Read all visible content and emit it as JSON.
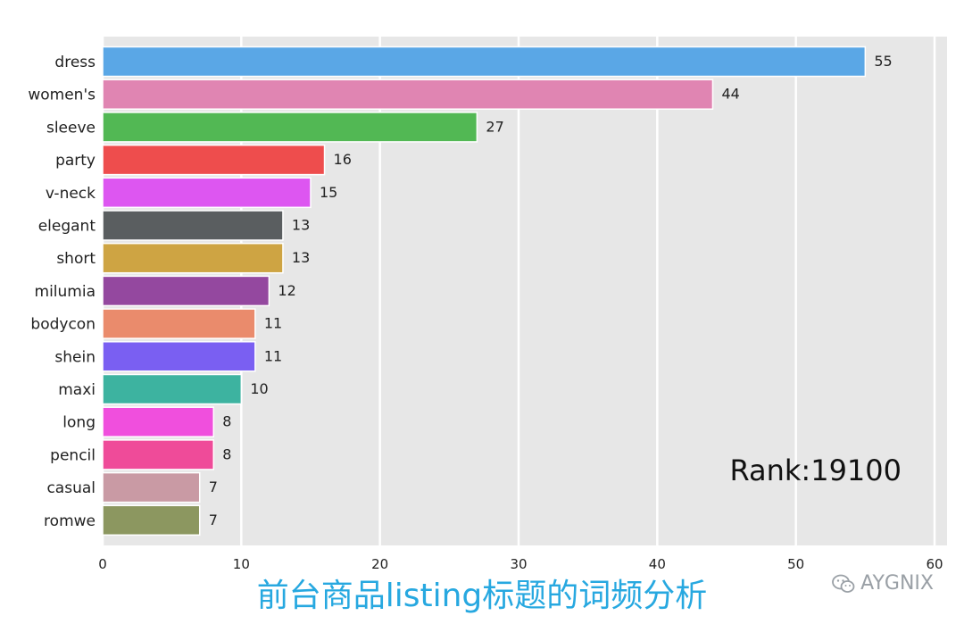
{
  "chart_data": {
    "type": "bar",
    "orientation": "horizontal",
    "categories": [
      "dress",
      "women's",
      "sleeve",
      "party",
      "v-neck",
      "elegant",
      "short",
      "milumia",
      "bodycon",
      "shein",
      "maxi",
      "long",
      "pencil",
      "casual",
      "romwe"
    ],
    "values": [
      55,
      44,
      27,
      16,
      15,
      13,
      13,
      12,
      11,
      11,
      10,
      8,
      8,
      7,
      7
    ],
    "colors": [
      "#5aa7e6",
      "#e085b2",
      "#52b854",
      "#ee4d4d",
      "#dd56f1",
      "#5a5e60",
      "#cea443",
      "#94489f",
      "#ea8b6c",
      "#7a5ff2",
      "#3db3a0",
      "#f04fdd",
      "#ef4b99",
      "#c99aa4",
      "#8c9760"
    ],
    "xlim": [
      0,
      60
    ],
    "xticks": [
      0,
      10,
      20,
      30,
      40,
      50,
      60
    ],
    "grid": true,
    "annotation": "Rank:19100"
  },
  "caption": "前台商品listing标题的词频分析",
  "watermark": {
    "icon": "wechat-icon",
    "text": "AYGNIX"
  }
}
